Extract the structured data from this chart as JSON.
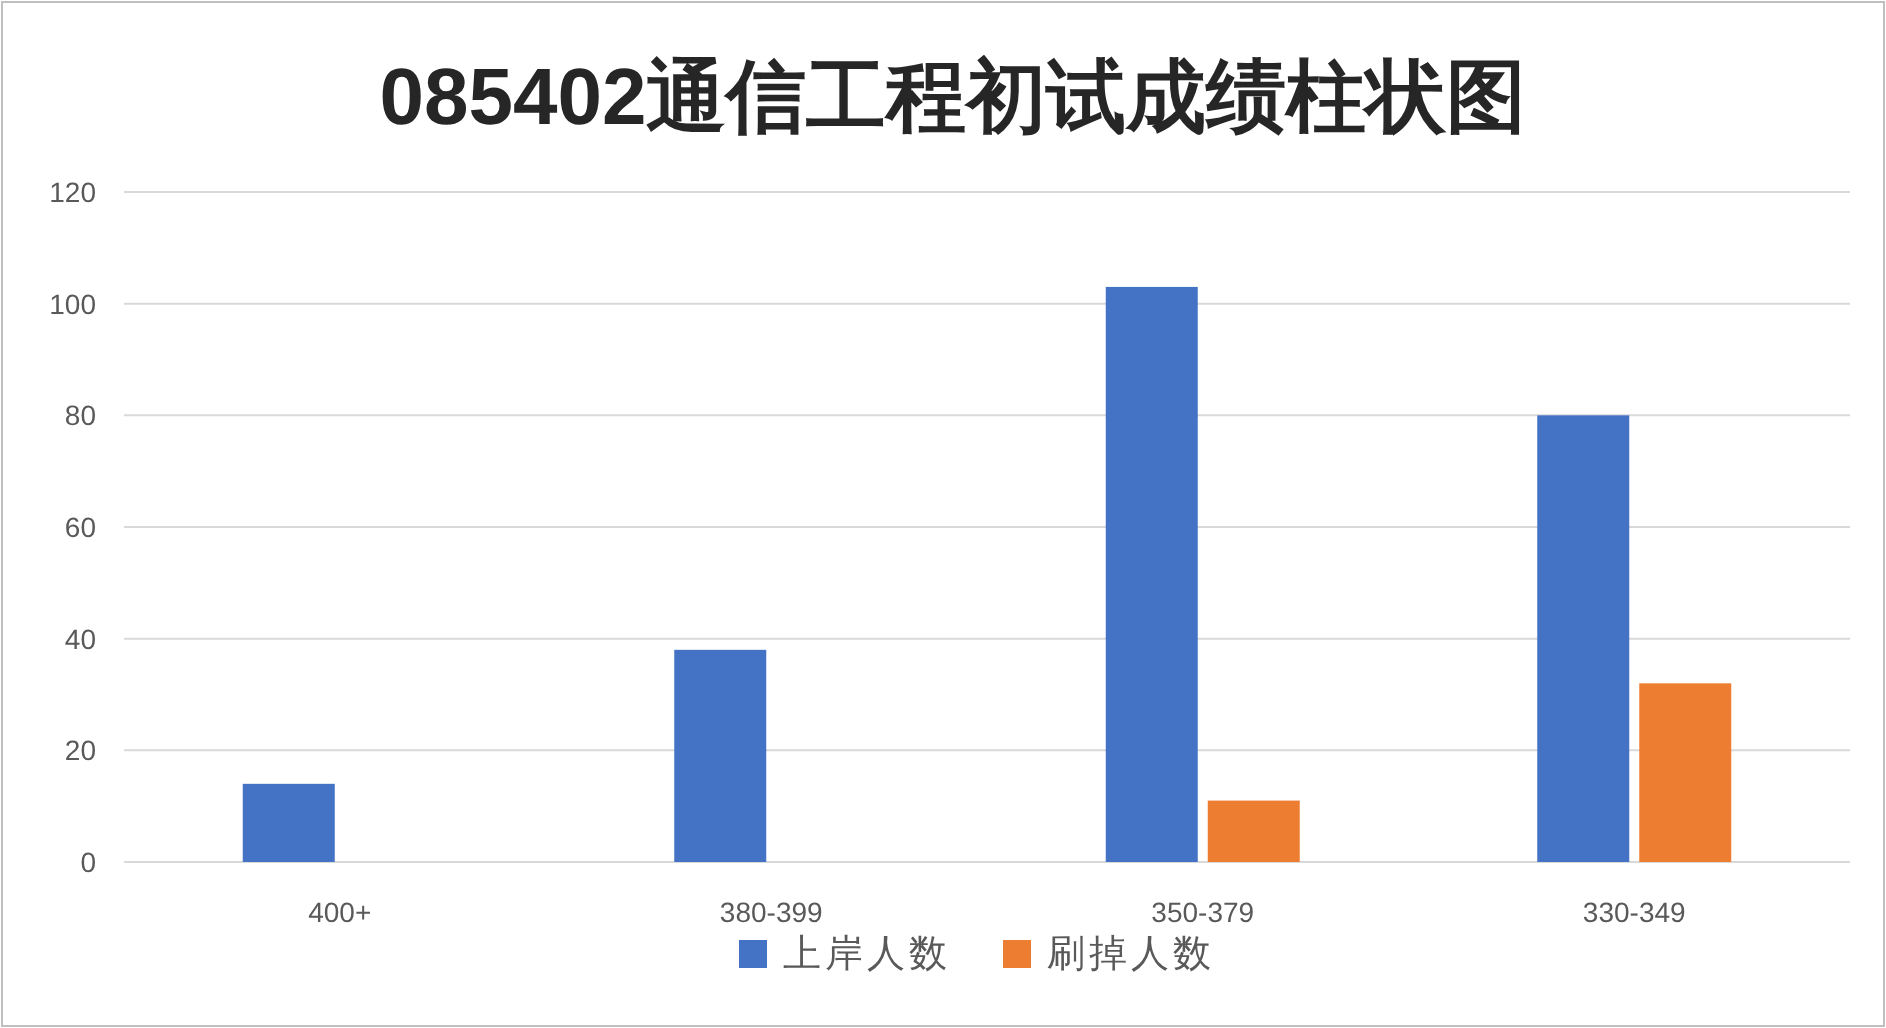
{
  "chart_data": {
    "type": "bar",
    "title": "085402通信工程初试成绩柱状图",
    "categories": [
      "400+",
      "380-399",
      "350-379",
      "330-349"
    ],
    "series": [
      {
        "name": "上岸人数",
        "color": "#4472c4",
        "values": [
          14,
          38,
          103,
          80
        ]
      },
      {
        "name": "刷掉人数",
        "color": "#ed7d31",
        "values": [
          null,
          null,
          11,
          32
        ]
      }
    ],
    "ylim": [
      0,
      120
    ],
    "yticks": [
      0,
      20,
      40,
      60,
      80,
      100,
      120
    ],
    "grid": "y",
    "legend": "bottom"
  }
}
